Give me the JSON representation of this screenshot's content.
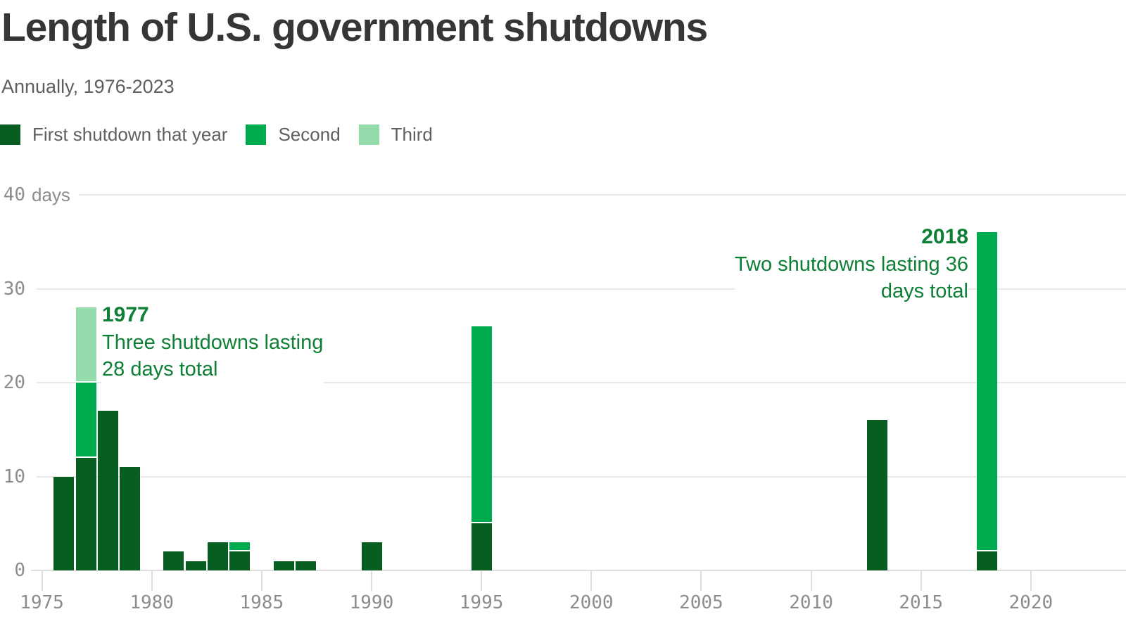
{
  "colors": {
    "background": "#ffffff",
    "title_text": "#363636",
    "muted_text": "#5f5f5f",
    "axis_text": "#8c8c8c",
    "grid": "#e9e9e9",
    "baseline_c": "#dedede",
    "tick_c": "#dcdcdc",
    "annotation": "#0e8036"
  },
  "chart_data": {
    "type": "bar",
    "stacked": true,
    "title": "Length of U.S. government shutdowns",
    "subtitle": "Annually, 1976-2023",
    "xlabel": "",
    "ylabel": "days",
    "ylim": [
      0,
      40
    ],
    "y_ticks": [
      0,
      10,
      20,
      30,
      40
    ],
    "x_ticks": [
      1975,
      1980,
      1985,
      1990,
      1995,
      2000,
      2005,
      2010,
      2015,
      2020
    ],
    "x_range": [
      1975,
      2023
    ],
    "grid": "horizontal",
    "legend_position": "top-left",
    "series": [
      {
        "name": "First shutdown that year",
        "color": "#075e20"
      },
      {
        "name": "Second",
        "color": "#00ab50"
      },
      {
        "name": "Third",
        "color": "#93dbab"
      }
    ],
    "bars": [
      {
        "year": 1976,
        "segments": [
          10
        ]
      },
      {
        "year": 1977,
        "segments": [
          12,
          8,
          8
        ],
        "total": 28
      },
      {
        "year": 1978,
        "segments": [
          17
        ]
      },
      {
        "year": 1979,
        "segments": [
          11
        ]
      },
      {
        "year": 1981,
        "segments": [
          2
        ]
      },
      {
        "year": 1982,
        "segments": [
          1
        ]
      },
      {
        "year": 1983,
        "segments": [
          3
        ]
      },
      {
        "year": 1984,
        "segments": [
          2,
          1
        ]
      },
      {
        "year": 1986,
        "segments": [
          1
        ]
      },
      {
        "year": 1987,
        "segments": [
          1
        ]
      },
      {
        "year": 1990,
        "segments": [
          3
        ]
      },
      {
        "year": 1995,
        "segments": [
          5,
          21
        ],
        "total": 26
      },
      {
        "year": 2013,
        "segments": [
          16
        ]
      },
      {
        "year": 2018,
        "segments": [
          2,
          34
        ],
        "total": 36
      }
    ],
    "annotations": [
      {
        "year_label": "1977",
        "line1": "Three shutdowns lasting",
        "line2": "28 days total",
        "align": "left"
      },
      {
        "year_label": "2018",
        "line1": "Two shutdowns lasting 36",
        "line2": "days total",
        "align": "right"
      }
    ]
  }
}
